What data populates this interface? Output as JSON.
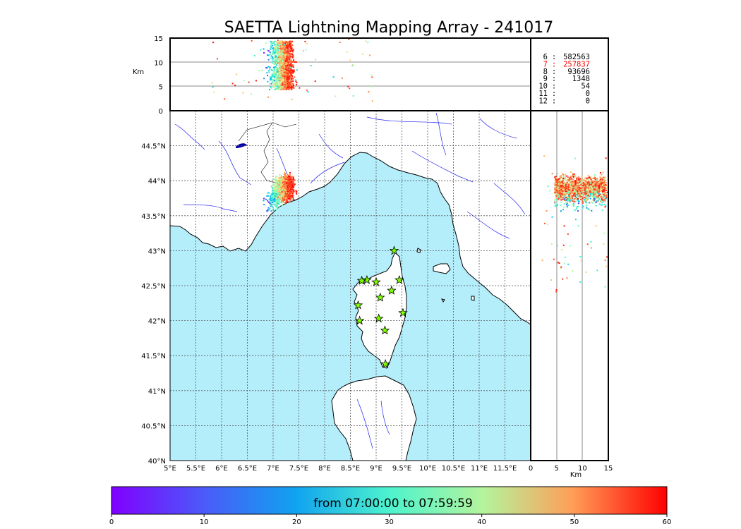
{
  "title": "SAETTA Lightning Mapping Array - 241017",
  "colors": {
    "sea": "#b4eefb",
    "coast": "#000000",
    "rivers": "#2222ee",
    "grid": "#555555",
    "station_fill": "#7fff00",
    "highlight": "#ff0000"
  },
  "altitude_axis": {
    "unit_label": "Km",
    "ticks": [
      "15",
      "10",
      "5",
      "0"
    ],
    "range": [
      0,
      15
    ]
  },
  "side_axis": {
    "unit_label": "Km",
    "ticks": [
      "0",
      "5",
      "10",
      "15"
    ],
    "range": [
      0,
      15
    ]
  },
  "map": {
    "lon_range": [
      5,
      12
    ],
    "lat_range": [
      40,
      45
    ],
    "lon_ticks": [
      "5°E",
      "5.5°E",
      "6°E",
      "6.5°E",
      "7°E",
      "7.5°E",
      "8°E",
      "8.5°E",
      "9°E",
      "9.5°E",
      "10°E",
      "10.5°E",
      "11°E",
      "11.5°E"
    ],
    "lat_ticks": [
      "40°N",
      "40.5°N",
      "41°N",
      "41.5°N",
      "42°N",
      "42.5°N",
      "43°N",
      "43.5°N",
      "44°N",
      "44.5°N"
    ],
    "stations_icon": "star-icon",
    "station_count": 14
  },
  "station_stats": [
    {
      "stations": "6",
      "sep": ":",
      "count": "582563",
      "highlight": false
    },
    {
      "stations": "7",
      "sep": ":",
      "count": "257837",
      "highlight": true
    },
    {
      "stations": "8",
      "sep": ":",
      "count": "93696",
      "highlight": false
    },
    {
      "stations": "9",
      "sep": ":",
      "count": "1348",
      "highlight": false
    },
    {
      "stations": "10",
      "sep": ":",
      "count": "54",
      "highlight": false
    },
    {
      "stations": "11",
      "sep": ":",
      "count": "0",
      "highlight": false
    },
    {
      "stations": "12",
      "sep": ":",
      "count": "0",
      "highlight": false
    }
  ],
  "colorbar": {
    "label": "from 07:00:00 to 07:59:59",
    "ticks": [
      "0",
      "10",
      "20",
      "30",
      "40",
      "50",
      "60"
    ],
    "range": [
      0,
      60
    ],
    "colormap": "rainbow"
  }
}
